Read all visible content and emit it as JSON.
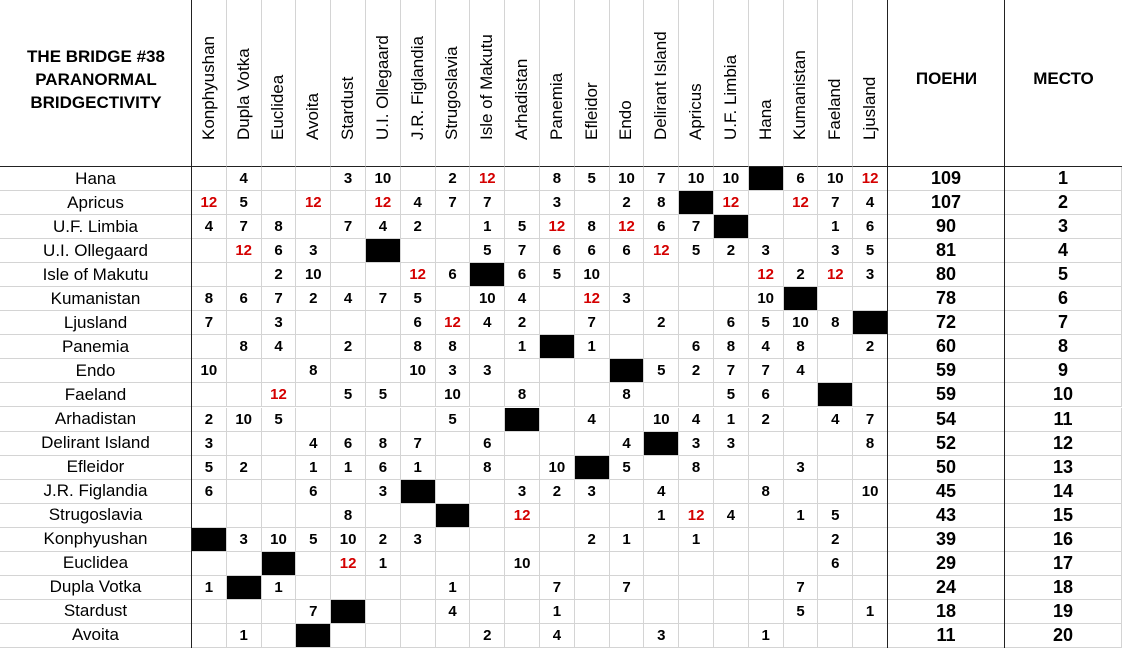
{
  "header": {
    "title": [
      "THE BRIDGE #38",
      "PARANORMAL",
      "BRIDGECTIVITY"
    ],
    "voters": [
      "Konphyushan",
      "Dupla Votka",
      "Euclidea",
      "Avoita",
      "Stardust",
      "U.I. Ollegaard",
      "J.R. Figlandia",
      "Strugoslavia",
      "Isle of Makutu",
      "Arhadistan",
      "Panemia",
      "Efleidor",
      "Endo",
      "Delirant Island",
      "Apricus",
      "U.F. Limbia",
      "Hana",
      "Kumanistan",
      "Faeland",
      "Ljusland"
    ],
    "points_header": "ПОЕНИ",
    "place_header": "МЕСТО"
  },
  "rows": [
    {
      "country": "Hana",
      "votes": [
        null,
        4,
        null,
        null,
        3,
        10,
        null,
        2,
        12,
        null,
        8,
        5,
        10,
        7,
        10,
        10,
        null,
        6,
        10,
        12
      ],
      "points": 109,
      "place": 1
    },
    {
      "country": "Apricus",
      "votes": [
        12,
        5,
        null,
        12,
        null,
        12,
        4,
        7,
        7,
        null,
        3,
        null,
        2,
        8,
        null,
        12,
        null,
        12,
        7,
        4
      ],
      "points": 107,
      "place": 2
    },
    {
      "country": "U.F. Limbia",
      "votes": [
        4,
        7,
        8,
        null,
        7,
        4,
        2,
        null,
        1,
        5,
        12,
        8,
        12,
        6,
        7,
        null,
        null,
        null,
        1,
        6
      ],
      "points": 90,
      "place": 3
    },
    {
      "country": "U.I. Ollegaard",
      "votes": [
        null,
        12,
        6,
        3,
        null,
        null,
        null,
        null,
        5,
        7,
        6,
        6,
        6,
        12,
        5,
        2,
        3,
        null,
        3,
        5
      ],
      "points": 81,
      "place": 4
    },
    {
      "country": "Isle of Makutu",
      "votes": [
        null,
        null,
        2,
        10,
        null,
        null,
        12,
        6,
        null,
        6,
        5,
        10,
        null,
        null,
        null,
        null,
        12,
        2,
        12,
        3
      ],
      "points": 80,
      "place": 5
    },
    {
      "country": "Kumanistan",
      "votes": [
        8,
        6,
        7,
        2,
        4,
        7,
        5,
        null,
        10,
        4,
        null,
        12,
        3,
        null,
        null,
        null,
        10,
        null,
        null,
        null
      ],
      "points": 78,
      "place": 6
    },
    {
      "country": "Ljusland",
      "votes": [
        7,
        null,
        3,
        null,
        null,
        null,
        6,
        12,
        4,
        2,
        null,
        7,
        null,
        2,
        null,
        6,
        5,
        10,
        8,
        null
      ],
      "points": 72,
      "place": 7
    },
    {
      "country": "Panemia",
      "votes": [
        null,
        8,
        4,
        null,
        2,
        null,
        8,
        8,
        null,
        1,
        null,
        1,
        null,
        null,
        6,
        8,
        4,
        8,
        null,
        2
      ],
      "points": 60,
      "place": 8
    },
    {
      "country": "Endo",
      "votes": [
        10,
        null,
        null,
        8,
        null,
        null,
        10,
        3,
        3,
        null,
        null,
        null,
        null,
        5,
        2,
        7,
        7,
        4,
        null,
        null
      ],
      "points": 59,
      "place": 9
    },
    {
      "country": "Faeland",
      "votes": [
        null,
        null,
        12,
        null,
        5,
        5,
        null,
        10,
        null,
        8,
        null,
        null,
        8,
        null,
        null,
        5,
        6,
        null,
        null,
        null
      ],
      "points": 59,
      "place": 10
    },
    {
      "country": "Arhadistan",
      "votes": [
        2,
        10,
        5,
        null,
        null,
        null,
        null,
        5,
        null,
        null,
        null,
        4,
        null,
        10,
        4,
        1,
        2,
        null,
        4,
        7
      ],
      "points": 54,
      "place": 11
    },
    {
      "country": "Delirant Island",
      "votes": [
        3,
        null,
        null,
        4,
        6,
        8,
        7,
        null,
        6,
        null,
        null,
        null,
        4,
        null,
        3,
        3,
        null,
        null,
        null,
        8
      ],
      "points": 52,
      "place": 12
    },
    {
      "country": "Efleidor",
      "votes": [
        5,
        2,
        null,
        1,
        1,
        6,
        1,
        null,
        8,
        null,
        10,
        null,
        5,
        null,
        8,
        null,
        null,
        3,
        null,
        null
      ],
      "points": 50,
      "place": 13
    },
    {
      "country": "J.R. Figlandia",
      "votes": [
        6,
        null,
        null,
        6,
        null,
        3,
        null,
        null,
        null,
        3,
        2,
        3,
        null,
        4,
        null,
        null,
        8,
        null,
        null,
        10
      ],
      "points": 45,
      "place": 14
    },
    {
      "country": "Strugoslavia",
      "votes": [
        null,
        null,
        null,
        null,
        8,
        null,
        null,
        null,
        null,
        12,
        null,
        null,
        null,
        1,
        12,
        4,
        null,
        1,
        5,
        null
      ],
      "points": 43,
      "place": 15
    },
    {
      "country": "Konphyushan",
      "votes": [
        null,
        3,
        10,
        5,
        10,
        2,
        3,
        null,
        null,
        null,
        null,
        2,
        1,
        null,
        1,
        null,
        null,
        null,
        2,
        null
      ],
      "points": 39,
      "place": 16
    },
    {
      "country": "Euclidea",
      "votes": [
        null,
        null,
        null,
        null,
        12,
        1,
        null,
        null,
        null,
        10,
        null,
        null,
        null,
        null,
        null,
        null,
        null,
        null,
        6,
        null
      ],
      "points": 29,
      "place": 17
    },
    {
      "country": "Dupla Votka",
      "votes": [
        1,
        null,
        1,
        null,
        null,
        null,
        null,
        1,
        null,
        null,
        7,
        null,
        7,
        null,
        null,
        null,
        null,
        7,
        null,
        null
      ],
      "points": 24,
      "place": 18
    },
    {
      "country": "Stardust",
      "votes": [
        null,
        null,
        null,
        7,
        null,
        null,
        null,
        4,
        null,
        null,
        1,
        null,
        null,
        null,
        null,
        null,
        null,
        5,
        null,
        1
      ],
      "points": 18,
      "place": 19
    },
    {
      "country": "Avoita",
      "votes": [
        null,
        1,
        null,
        null,
        null,
        null,
        null,
        null,
        2,
        null,
        4,
        null,
        null,
        3,
        null,
        null,
        1,
        null,
        null,
        null
      ],
      "points": 11,
      "place": 20
    }
  ]
}
